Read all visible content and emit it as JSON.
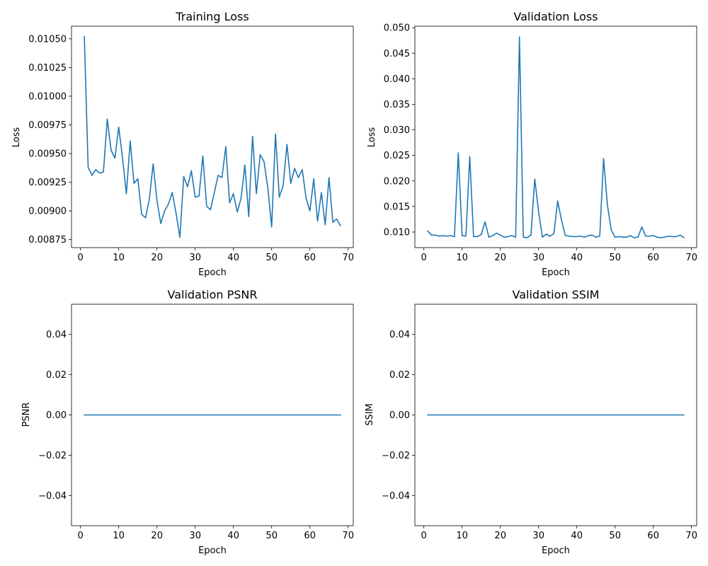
{
  "style": {
    "line_color": "#1f77b4",
    "background": "#ffffff"
  },
  "chart_data": [
    {
      "type": "line",
      "title": "Training Loss",
      "xlabel": "Epoch",
      "ylabel": "Loss",
      "xlim": [
        -2.35,
        71.35
      ],
      "ylim": [
        0.00868,
        0.01061
      ],
      "xticks": [
        0,
        10,
        20,
        30,
        40,
        50,
        60,
        70
      ],
      "yticks": [
        0.00875,
        0.009,
        0.00925,
        0.0095,
        0.00975,
        0.01,
        0.01025,
        0.0105
      ],
      "ytick_labels": [
        "0.00875",
        "0.00900",
        "0.00925",
        "0.00950",
        "0.00975",
        "0.01000",
        "0.01025",
        "0.01050"
      ],
      "grid": false,
      "series": [
        {
          "x": [
            1,
            2,
            3,
            4,
            5,
            6,
            7,
            8,
            9,
            10,
            11,
            12,
            13,
            14,
            15,
            16,
            17,
            18,
            19,
            20,
            21,
            22,
            23,
            24,
            25,
            26,
            27,
            28,
            29,
            30,
            31,
            32,
            33,
            34,
            35,
            36,
            37,
            38,
            39,
            40,
            41,
            42,
            43,
            44,
            45,
            46,
            47,
            48,
            49,
            50,
            51,
            52,
            53,
            54,
            55,
            56,
            57,
            58,
            59,
            60,
            61,
            62,
            63,
            64,
            65,
            66,
            67,
            68
          ],
          "values": [
            0.01052,
            0.00938,
            0.00931,
            0.00936,
            0.00933,
            0.00934,
            0.0098,
            0.00953,
            0.00946,
            0.00973,
            0.00946,
            0.00915,
            0.00961,
            0.00924,
            0.00928,
            0.00897,
            0.00894,
            0.0091,
            0.00941,
            0.00909,
            0.00889,
            0.009,
            0.00906,
            0.00916,
            0.00898,
            0.00877,
            0.0093,
            0.00921,
            0.00935,
            0.00912,
            0.00913,
            0.00948,
            0.00904,
            0.00901,
            0.00916,
            0.00931,
            0.00929,
            0.00956,
            0.00907,
            0.00915,
            0.00899,
            0.00911,
            0.0094,
            0.00895,
            0.00965,
            0.00915,
            0.00949,
            0.00943,
            0.0092,
            0.00886,
            0.00967,
            0.00912,
            0.00922,
            0.00958,
            0.00924,
            0.00937,
            0.00929,
            0.00936,
            0.00911,
            0.009,
            0.00928,
            0.00891,
            0.00916,
            0.00888,
            0.00929,
            0.0089,
            0.00893,
            0.00887
          ]
        }
      ]
    },
    {
      "type": "line",
      "title": "Validation Loss",
      "xlabel": "Epoch",
      "ylabel": "Loss",
      "xlim": [
        -2.35,
        71.35
      ],
      "ylim": [
        0.00695,
        0.0503
      ],
      "xticks": [
        0,
        10,
        20,
        30,
        40,
        50,
        60,
        70
      ],
      "yticks": [
        0.01,
        0.015,
        0.02,
        0.025,
        0.03,
        0.035,
        0.04,
        0.045,
        0.05
      ],
      "ytick_labels": [
        "0.010",
        "0.015",
        "0.020",
        "0.025",
        "0.030",
        "0.035",
        "0.040",
        "0.045",
        "0.050"
      ],
      "grid": false,
      "series": [
        {
          "x": [
            1,
            2,
            3,
            4,
            5,
            6,
            7,
            8,
            9,
            10,
            11,
            12,
            13,
            14,
            15,
            16,
            17,
            18,
            19,
            20,
            21,
            22,
            23,
            24,
            25,
            26,
            27,
            28,
            29,
            30,
            31,
            32,
            33,
            34,
            35,
            36,
            37,
            38,
            39,
            40,
            41,
            42,
            43,
            44,
            45,
            46,
            47,
            48,
            49,
            50,
            51,
            52,
            53,
            54,
            55,
            56,
            57,
            58,
            59,
            60,
            61,
            62,
            63,
            64,
            65,
            66,
            67,
            68
          ],
          "values": [
            0.0102,
            0.0094,
            0.0094,
            0.0092,
            0.0093,
            0.0092,
            0.0093,
            0.0091,
            0.0255,
            0.0093,
            0.0092,
            0.0248,
            0.0091,
            0.0091,
            0.0095,
            0.012,
            0.009,
            0.0093,
            0.0098,
            0.0094,
            0.009,
            0.0091,
            0.0093,
            0.009,
            0.0482,
            0.009,
            0.0089,
            0.0094,
            0.0204,
            0.014,
            0.009,
            0.0096,
            0.0092,
            0.0097,
            0.0161,
            0.0123,
            0.0093,
            0.0092,
            0.0091,
            0.0091,
            0.0092,
            0.009,
            0.0093,
            0.0094,
            0.009,
            0.0092,
            0.0244,
            0.0153,
            0.0104,
            0.009,
            0.0091,
            0.009,
            0.009,
            0.0093,
            0.0089,
            0.009,
            0.011,
            0.0092,
            0.0092,
            0.0093,
            0.009,
            0.0089,
            0.009,
            0.0092,
            0.0091,
            0.0091,
            0.0094,
            0.0089
          ]
        }
      ]
    },
    {
      "type": "line",
      "title": "Validation PSNR",
      "xlabel": "Epoch",
      "ylabel": "PSNR",
      "xlim": [
        -2.35,
        71.35
      ],
      "ylim": [
        -0.055,
        0.055
      ],
      "xticks": [
        0,
        10,
        20,
        30,
        40,
        50,
        60,
        70
      ],
      "yticks": [
        -0.04,
        -0.02,
        0.0,
        0.02,
        0.04
      ],
      "ytick_labels": [
        "−0.04",
        "−0.02",
        "0.00",
        "0.02",
        "0.04"
      ],
      "grid": false,
      "series": [
        {
          "x": [
            1,
            68
          ],
          "values": [
            0,
            0
          ]
        }
      ]
    },
    {
      "type": "line",
      "title": "Validation SSIM",
      "xlabel": "Epoch",
      "ylabel": "SSIM",
      "xlim": [
        -2.35,
        71.35
      ],
      "ylim": [
        -0.055,
        0.055
      ],
      "xticks": [
        0,
        10,
        20,
        30,
        40,
        50,
        60,
        70
      ],
      "yticks": [
        -0.04,
        -0.02,
        0.0,
        0.02,
        0.04
      ],
      "ytick_labels": [
        "−0.04",
        "−0.02",
        "0.00",
        "0.02",
        "0.04"
      ],
      "grid": false,
      "series": [
        {
          "x": [
            1,
            68
          ],
          "values": [
            0,
            0
          ]
        }
      ]
    }
  ]
}
